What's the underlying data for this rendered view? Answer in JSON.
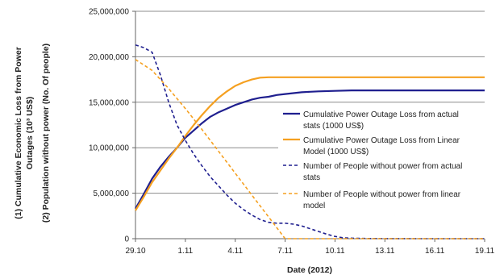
{
  "chart_data": {
    "type": "line",
    "xlabel": "Date (2012)",
    "ylabel_lines": [
      "(1) Cumulative Economic Loss from Power",
      "Outages (10³ US$)",
      "(2) Population without power (No. Of people)"
    ],
    "x_tick_labels": [
      "29.10",
      "1.11",
      "4.11",
      "7.11",
      "10.11",
      "13.11",
      "16.11",
      "19.11"
    ],
    "x_tick_days": [
      0,
      3,
      6,
      9,
      12,
      15,
      18,
      21
    ],
    "xlim": [
      0,
      21
    ],
    "ylim": [
      0,
      25000000
    ],
    "y_ticks": [
      0,
      5000000,
      10000000,
      15000000,
      20000000,
      25000000
    ],
    "y_tick_labels": [
      "0",
      "5,000,000",
      "10,000,000",
      "15,000,000",
      "20,000,000",
      "25,000,000"
    ],
    "grid": "horizontal",
    "legend_position": "right-center",
    "series": [
      {
        "name": "Cumulative Power Outage Loss from actual stats (1000 US$)",
        "legend_lines": [
          "Cumulative Power Outage Loss from actual",
          "stats (1000 US$)"
        ],
        "color": "#1f1f8f",
        "style": "solid",
        "x": [
          0,
          0.5,
          1,
          1.5,
          2,
          2.5,
          3,
          3.5,
          4,
          4.5,
          5,
          5.5,
          6,
          6.5,
          7,
          7.5,
          8,
          8.5,
          9,
          9.5,
          10,
          10.5,
          11,
          12,
          13,
          14,
          15,
          16,
          17,
          18,
          19,
          20,
          21
        ],
        "y": [
          3300000,
          4900000,
          6600000,
          7900000,
          9000000,
          10000000,
          11100000,
          11900000,
          12700000,
          13400000,
          13900000,
          14300000,
          14700000,
          15000000,
          15300000,
          15500000,
          15600000,
          15800000,
          15900000,
          16000000,
          16100000,
          16150000,
          16200000,
          16250000,
          16300000,
          16300000,
          16300000,
          16300000,
          16300000,
          16300000,
          16300000,
          16300000,
          16300000
        ]
      },
      {
        "name": "Cumulative Power Outage Loss from Linear Model (1000 US$)",
        "legend_lines": [
          "Cumulative Power Outage Loss from Linear",
          "Model (1000 US$)"
        ],
        "color": "#f5a020",
        "style": "solid",
        "x": [
          0,
          0.5,
          1,
          1.5,
          2,
          2.5,
          3,
          3.5,
          4,
          4.5,
          5,
          5.5,
          6,
          6.5,
          7,
          7.5,
          8,
          8.5,
          9,
          9.5,
          10,
          11,
          12,
          13,
          14,
          15,
          16,
          17,
          18,
          19,
          20,
          21
        ],
        "y": [
          3100000,
          4600000,
          6200000,
          7500000,
          8800000,
          10000000,
          11300000,
          12500000,
          13600000,
          14600000,
          15500000,
          16200000,
          16800000,
          17200000,
          17500000,
          17700000,
          17750000,
          17750000,
          17750000,
          17750000,
          17750000,
          17750000,
          17750000,
          17750000,
          17750000,
          17750000,
          17750000,
          17750000,
          17750000,
          17750000,
          17750000,
          17750000
        ]
      },
      {
        "name": "Number of People without power from actual stats",
        "legend_lines": [
          "Number of People without power from actual",
          "stats"
        ],
        "color": "#1f1f8f",
        "style": "dashed",
        "x": [
          0,
          0.5,
          1,
          1.5,
          2,
          2.5,
          3,
          3.5,
          4,
          4.5,
          5,
          5.5,
          6,
          6.5,
          7,
          7.5,
          8,
          8.5,
          9,
          9.5,
          10,
          10.5,
          11,
          11.5,
          12,
          12.5,
          13,
          14,
          15,
          16,
          17,
          18,
          19,
          20,
          21
        ],
        "y": [
          21300000,
          21000000,
          20500000,
          18000000,
          15000000,
          12500000,
          10800000,
          9300000,
          8000000,
          6800000,
          5800000,
          4800000,
          3900000,
          3200000,
          2600000,
          2100000,
          1800000,
          1700000,
          1700000,
          1600000,
          1400000,
          1100000,
          800000,
          500000,
          250000,
          100000,
          50000,
          20000,
          10000,
          5000,
          0,
          0,
          0,
          0,
          0
        ]
      },
      {
        "name": "Number of People without power from linear model",
        "legend_lines": [
          "Number of People without power from linear",
          "model"
        ],
        "color": "#f5a020",
        "style": "dashed",
        "x": [
          0,
          1,
          2,
          3,
          4,
          5,
          6,
          7,
          8,
          8.5,
          9,
          10,
          11,
          12,
          13,
          14,
          15,
          16,
          17,
          18,
          19,
          20,
          21
        ],
        "y": [
          19700000,
          18500000,
          16500000,
          14300000,
          12000000,
          9600000,
          7200000,
          4800000,
          2400000,
          1200000,
          0,
          0,
          0,
          0,
          0,
          0,
          0,
          0,
          0,
          0,
          0,
          0,
          0
        ]
      }
    ]
  }
}
